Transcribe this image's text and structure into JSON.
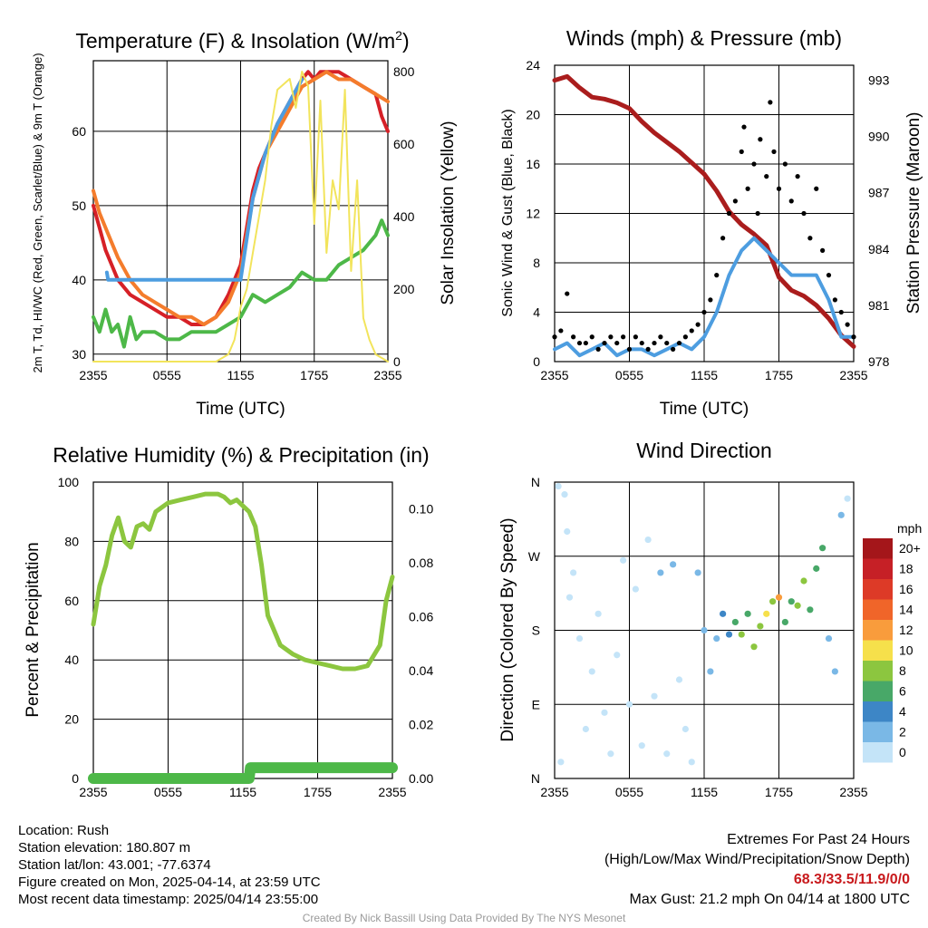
{
  "chart_data": [
    {
      "type": "line",
      "title": "Temperature (F) & Insolation (W/m2)",
      "xlabel": "Time (UTC)",
      "ylabel_left": "2m T, Td, HI/WC (Red, Green, Scarlet/Blue) & 9m T (Orange)",
      "ylabel_right": "Solar Insolation (Yellow)",
      "x_ticks": [
        "2355",
        "0555",
        "1155",
        "1755",
        "2355"
      ],
      "y_ticks_left": [
        30,
        40,
        50,
        60
      ],
      "y_ticks_right": [
        0,
        200,
        400,
        600,
        800
      ],
      "ylim_left": [
        29,
        69.5
      ],
      "ylim_right": [
        0,
        830
      ],
      "grid": true,
      "series": [
        {
          "color": "#d62027",
          "axis": "left",
          "x": [
            0,
            0.5,
            1,
            1.5,
            2,
            3,
            4,
            5,
            6,
            7,
            8,
            9,
            10,
            11,
            12,
            13,
            13.5,
            14,
            15,
            16,
            17,
            17.5,
            18,
            18.5,
            19,
            20,
            21,
            22,
            23,
            23.5,
            24
          ],
          "values": [
            50,
            47,
            44,
            42,
            40,
            38,
            37,
            36,
            35,
            35,
            34,
            34,
            35,
            38,
            42,
            52,
            55,
            57,
            61,
            64,
            67,
            68,
            67,
            68,
            68,
            68,
            67,
            66,
            65,
            62,
            60
          ]
        },
        {
          "color": "#f47c2c",
          "axis": "left",
          "x": [
            0,
            0.5,
            1,
            1.5,
            2,
            3,
            4,
            5,
            6,
            7,
            8,
            9,
            10,
            11,
            12,
            13,
            14,
            15,
            16,
            17,
            18,
            19,
            20,
            21,
            22,
            23,
            24
          ],
          "values": [
            52,
            49,
            47,
            45,
            43,
            40,
            38,
            37,
            36,
            35,
            35,
            34,
            35,
            37,
            41,
            51,
            57,
            60,
            63,
            66,
            67,
            68,
            67,
            67,
            66,
            65,
            64
          ]
        },
        {
          "color": "#4d9de0",
          "axis": "left",
          "x": [
            1.1,
            1.2,
            12,
            13,
            14,
            15,
            16,
            17
          ],
          "values": [
            41,
            40,
            40,
            51,
            57,
            61,
            64,
            67
          ]
        },
        {
          "color": "#4db848",
          "axis": "left",
          "x": [
            0,
            0.5,
            1,
            1.5,
            2,
            2.5,
            3,
            3.5,
            4,
            5,
            6,
            7,
            8,
            9,
            10,
            11,
            12,
            13,
            14,
            15,
            16,
            17,
            18,
            19,
            20,
            21,
            22,
            23,
            23.5,
            24
          ],
          "values": [
            35,
            33,
            36,
            33,
            34,
            31,
            35,
            32,
            33,
            33,
            32,
            32,
            33,
            33,
            33,
            34,
            35,
            38,
            37,
            38,
            39,
            41,
            40,
            40,
            42,
            43,
            44,
            46,
            48,
            46
          ]
        },
        {
          "color": "#f2e45c",
          "axis": "right",
          "x": [
            0,
            10,
            11,
            11.5,
            12,
            12.5,
            13,
            14,
            14.5,
            15,
            16,
            16.5,
            17,
            17.5,
            18,
            18.5,
            19,
            19.5,
            20,
            20.5,
            21,
            21.5,
            22,
            22.5,
            23,
            24
          ],
          "values": [
            0,
            0,
            20,
            60,
            150,
            200,
            300,
            500,
            650,
            750,
            780,
            700,
            800,
            760,
            380,
            720,
            300,
            500,
            420,
            750,
            250,
            500,
            120,
            60,
            20,
            0
          ]
        }
      ]
    },
    {
      "type": "line",
      "title": "Winds (mph) & Pressure (mb)",
      "xlabel": "Time (UTC)",
      "ylabel_left": "Sonic Wind & Gust (Blue, Black)",
      "ylabel_right": "Station Pressure (Maroon)",
      "x_ticks": [
        "2355",
        "0555",
        "1155",
        "1755",
        "2355"
      ],
      "y_ticks_left": [
        0,
        4,
        8,
        12,
        16,
        20,
        24
      ],
      "y_ticks_right": [
        978,
        981,
        984,
        987,
        990,
        993
      ],
      "ylim_left": [
        0,
        24
      ],
      "ylim_right": [
        978,
        993.8
      ],
      "grid": true,
      "series": [
        {
          "color": "#aa1d1d",
          "axis": "right",
          "x": [
            0,
            1,
            2,
            3,
            4,
            5,
            6,
            7,
            8,
            9,
            10,
            11,
            12,
            13,
            14,
            15,
            16,
            17,
            18,
            19,
            20,
            21,
            22,
            23,
            24
          ],
          "values": [
            993,
            993.2,
            992.6,
            992.1,
            992,
            991.8,
            991.5,
            990.8,
            990.2,
            989.7,
            989.2,
            988.6,
            988,
            987.1,
            986,
            985.3,
            984.8,
            984.2,
            982.5,
            981.8,
            981.5,
            981,
            980.3,
            979.4,
            978.8
          ]
        },
        {
          "color": "#4d9de0",
          "axis": "left",
          "x": [
            0,
            1,
            2,
            3,
            4,
            5,
            6,
            7,
            8,
            9,
            10,
            11,
            12,
            13,
            14,
            15,
            16,
            17,
            18,
            19,
            20,
            21,
            22,
            23,
            24
          ],
          "values": [
            1,
            1.5,
            0.5,
            1,
            1.5,
            0.5,
            1,
            1,
            0.5,
            1,
            1.5,
            1,
            2,
            4,
            7,
            9,
            10,
            9,
            8,
            7,
            7,
            7,
            5,
            2,
            2
          ]
        },
        {
          "color": "#000000",
          "axis": "left",
          "type": "scatter",
          "x": [
            0,
            0.5,
            1,
            1.5,
            2,
            2.5,
            3,
            3.5,
            4,
            4.5,
            5,
            5.5,
            6,
            6.5,
            7,
            7.5,
            8,
            8.5,
            9,
            9.5,
            10,
            10.5,
            11,
            11.5,
            12,
            12.5,
            13,
            13.5,
            14,
            14.5,
            15,
            15.2,
            15.5,
            16,
            16.3,
            16.5,
            17,
            17.3,
            17.6,
            18,
            18.5,
            19,
            19.5,
            20,
            20.5,
            21,
            21.5,
            22,
            22.5,
            23,
            23.5,
            24
          ],
          "values": [
            2,
            2.5,
            5.5,
            2,
            1.5,
            1.5,
            2,
            1,
            1.5,
            2,
            1.5,
            2,
            1,
            2,
            1.5,
            1,
            1.5,
            2,
            1.5,
            1,
            1.5,
            2,
            2.5,
            3,
            4,
            5,
            7,
            10,
            12,
            13,
            17,
            19,
            14,
            16,
            12,
            18,
            15,
            21,
            17,
            14,
            16,
            13,
            15,
            12,
            10,
            14,
            9,
            7,
            5,
            4,
            3,
            2
          ]
        }
      ]
    },
    {
      "type": "line",
      "title": "Relative Humidity (%) & Precipitation (in)",
      "xlabel": "",
      "ylabel_left": "Percent & Precipitation",
      "x_ticks": [
        "2355",
        "0555",
        "1155",
        "1755",
        "2355"
      ],
      "y_ticks_left": [
        0,
        20,
        40,
        60,
        80,
        100
      ],
      "y_ticks_right": [
        "0.00",
        "0.02",
        "0.04",
        "0.06",
        "0.08",
        "0.10"
      ],
      "ylim_left": [
        0,
        100
      ],
      "ylim_right": [
        0,
        0.11
      ],
      "grid": true,
      "series": [
        {
          "color": "#8cc63f",
          "axis": "left",
          "x": [
            0,
            0.5,
            1,
            1.5,
            2,
            2.5,
            3,
            3.5,
            4,
            4.5,
            5,
            6,
            7,
            8,
            9,
            10,
            10.5,
            11,
            11.5,
            12,
            12.5,
            13,
            13.5,
            14,
            15,
            16,
            17,
            18,
            19,
            20,
            21,
            22,
            23,
            23.5,
            24
          ],
          "values": [
            52,
            65,
            72,
            82,
            88,
            80,
            78,
            85,
            86,
            84,
            90,
            93,
            94,
            95,
            96,
            96,
            95,
            93,
            94,
            92,
            90,
            85,
            72,
            55,
            45,
            42,
            40,
            39,
            38,
            37,
            37,
            38,
            45,
            60,
            68
          ]
        },
        {
          "color": "#4db848",
          "axis": "right",
          "x": [
            0,
            12.5,
            12.6,
            24
          ],
          "values": [
            0,
            0,
            0.004,
            0.004
          ]
        }
      ]
    },
    {
      "type": "scatter",
      "title": "Wind Direction",
      "ylabel": "Direction (Colored By Speed)",
      "x_ticks": [
        "2355",
        "0555",
        "1155",
        "1755",
        "2355"
      ],
      "y_ticks": [
        "N",
        "E",
        "S",
        "W",
        "N"
      ],
      "ylim": [
        0,
        360
      ],
      "grid": true,
      "legend": {
        "title": "mph",
        "position": "right",
        "labels": [
          "20+",
          "18",
          "16",
          "14",
          "12",
          "10",
          "8",
          "6",
          "4",
          "2",
          "0"
        ],
        "colors": [
          "#a4161a",
          "#c62026",
          "#dd3a27",
          "#f06529",
          "#f99c3c",
          "#f6e04b",
          "#8cc63f",
          "#48a868",
          "#3d86c6",
          "#7ab8e6",
          "#c4e4f8"
        ]
      },
      "points": [
        {
          "x": 0.3,
          "dir": 355,
          "spd": 1
        },
        {
          "x": 0.5,
          "dir": 20,
          "spd": 1
        },
        {
          "x": 0.8,
          "dir": 345,
          "spd": 1
        },
        {
          "x": 1,
          "dir": 300,
          "spd": 1
        },
        {
          "x": 1.2,
          "dir": 220,
          "spd": 1
        },
        {
          "x": 1.5,
          "dir": 250,
          "spd": 1
        },
        {
          "x": 2,
          "dir": 170,
          "spd": 1
        },
        {
          "x": 2.5,
          "dir": 60,
          "spd": 1
        },
        {
          "x": 3,
          "dir": 130,
          "spd": 1
        },
        {
          "x": 3.5,
          "dir": 200,
          "spd": 1
        },
        {
          "x": 4,
          "dir": 80,
          "spd": 1
        },
        {
          "x": 4.5,
          "dir": 30,
          "spd": 1
        },
        {
          "x": 5,
          "dir": 150,
          "spd": 1
        },
        {
          "x": 5.5,
          "dir": 265,
          "spd": 1
        },
        {
          "x": 6,
          "dir": 90,
          "spd": 1
        },
        {
          "x": 6.5,
          "dir": 230,
          "spd": 1
        },
        {
          "x": 7,
          "dir": 40,
          "spd": 1
        },
        {
          "x": 7.5,
          "dir": 290,
          "spd": 1
        },
        {
          "x": 8,
          "dir": 100,
          "spd": 1
        },
        {
          "x": 8.5,
          "dir": 250,
          "spd": 2
        },
        {
          "x": 9,
          "dir": 30,
          "spd": 1
        },
        {
          "x": 9.5,
          "dir": 260,
          "spd": 3
        },
        {
          "x": 10,
          "dir": 120,
          "spd": 1
        },
        {
          "x": 10.5,
          "dir": 60,
          "spd": 1
        },
        {
          "x": 11,
          "dir": 20,
          "spd": 1
        },
        {
          "x": 11.5,
          "dir": 250,
          "spd": 2
        },
        {
          "x": 12,
          "dir": 180,
          "spd": 2
        },
        {
          "x": 12.5,
          "dir": 130,
          "spd": 2
        },
        {
          "x": 13,
          "dir": 170,
          "spd": 3
        },
        {
          "x": 13.5,
          "dir": 200,
          "spd": 4
        },
        {
          "x": 14,
          "dir": 175,
          "spd": 4
        },
        {
          "x": 14.5,
          "dir": 190,
          "spd": 7
        },
        {
          "x": 15,
          "dir": 175,
          "spd": 8
        },
        {
          "x": 15.5,
          "dir": 200,
          "spd": 7
        },
        {
          "x": 16,
          "dir": 160,
          "spd": 9
        },
        {
          "x": 16.5,
          "dir": 185,
          "spd": 8
        },
        {
          "x": 17,
          "dir": 200,
          "spd": 10
        },
        {
          "x": 17.5,
          "dir": 215,
          "spd": 8
        },
        {
          "x": 18,
          "dir": 220,
          "spd": 12
        },
        {
          "x": 18.5,
          "dir": 190,
          "spd": 7
        },
        {
          "x": 19,
          "dir": 215,
          "spd": 7
        },
        {
          "x": 19.5,
          "dir": 210,
          "spd": 9
        },
        {
          "x": 20,
          "dir": 240,
          "spd": 8
        },
        {
          "x": 20.5,
          "dir": 205,
          "spd": 7
        },
        {
          "x": 21,
          "dir": 255,
          "spd": 7
        },
        {
          "x": 21.5,
          "dir": 280,
          "spd": 7
        },
        {
          "x": 22,
          "dir": 170,
          "spd": 3
        },
        {
          "x": 22.5,
          "dir": 130,
          "spd": 2
        },
        {
          "x": 23,
          "dir": 320,
          "spd": 2
        },
        {
          "x": 23.5,
          "dir": 340,
          "spd": 1
        }
      ]
    }
  ],
  "labels": {
    "temp_title_main": "Temperature (F) & Insolation (W/m",
    "temp_title_sup": "2",
    "temp_title_end": ")"
  },
  "footer": {
    "location": "Location: Rush",
    "elevation": "Station elevation: 180.807 m",
    "latlon": "Station lat/lon: 43.001; -77.6374",
    "created": "Figure created on Mon, 2025-04-14, at 23:59 UTC",
    "recent": "Most recent data timestamp: 2025/04/14 23:55:00",
    "extremes_title": "Extremes For Past 24 Hours",
    "extremes_sub": "(High/Low/Max Wind/Precipitation/Snow Depth)",
    "extremes_values": "68.3/33.5/11.9/0/0",
    "max_gust": "Max Gust: 21.2 mph On 04/14 at 1800 UTC",
    "credit": "Created By Nick Bassill Using Data Provided By The NYS Mesonet"
  }
}
